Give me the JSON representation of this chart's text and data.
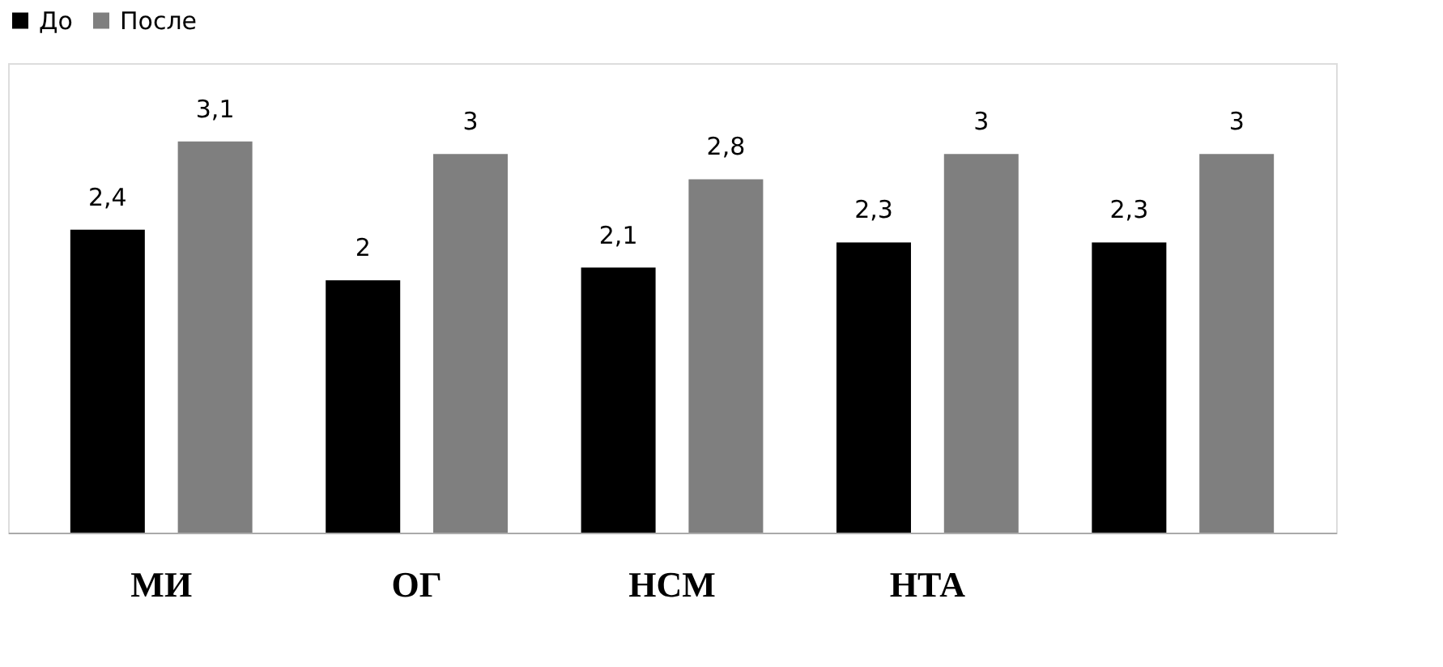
{
  "chart_data": {
    "type": "bar",
    "categories": [
      "МИ",
      "ОГ",
      "НСМ",
      "НТА",
      null
    ],
    "series": [
      {
        "name": "До",
        "color": "#000000",
        "values": [
          2.4,
          2.0,
          2.1,
          2.3,
          2.3
        ],
        "value_labels": [
          "2,4",
          "2",
          "2,1",
          "2,3",
          "2,3"
        ]
      },
      {
        "name": "После",
        "color": "#7f7f7f",
        "values": [
          3.1,
          3.0,
          2.8,
          3.0,
          3.0
        ],
        "value_labels": [
          "3,1",
          "3",
          "2,8",
          "3",
          "3"
        ]
      }
    ],
    "legend": "top",
    "grid": false
  }
}
